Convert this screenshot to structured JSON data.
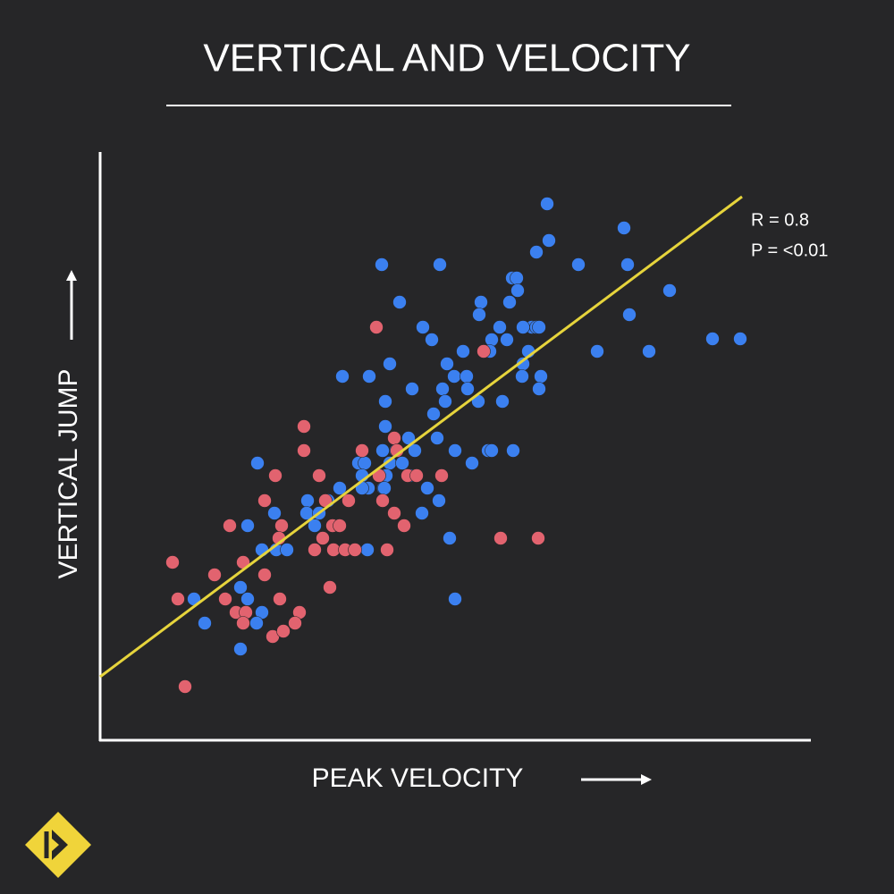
{
  "chart_data": {
    "type": "scatter",
    "title": "VERTICAL AND VELOCITY",
    "x_label": "PEAK VELOCITY",
    "y_label": "VERTICAL JUMP",
    "annotations": [
      "R = 0.8",
      "P = <0.01"
    ],
    "xlim": [
      112,
      905
    ],
    "ylim": [
      172,
      830
    ],
    "trend_line": {
      "color": "#e6d43c",
      "x": [
        112,
        830
      ],
      "y": [
        243,
        780
      ]
    },
    "series": [
      {
        "color": "#3b80f0",
        "x": [
          612,
          614,
          698,
          600,
          427,
          492,
          647,
          702,
          749,
          704,
          573,
          578,
          579,
          538,
          447,
          570,
          536,
          559,
          473,
          550,
          567,
          595,
          600,
          603,
          585,
          483,
          548,
          518,
          591,
          668,
          726,
          797,
          828,
          436,
          500,
          585,
          413,
          383,
          508,
          522,
          584,
          605,
          461,
          495,
          523,
          603,
          431,
          498,
          535,
          562,
          485,
          431,
          457,
          489,
          428,
          443,
          464,
          509,
          546,
          550,
          574,
          528,
          288,
          401,
          408,
          436,
          450,
          405,
          432,
          412,
          380,
          344,
          367,
          478,
          458,
          405,
          429,
          491,
          307,
          277,
          343,
          357,
          472,
          352,
          293,
          309,
          321,
          411,
          503,
          217,
          269,
          277,
          293,
          287,
          229,
          269,
          509,
          430
        ],
        "values": [
          772,
          731,
          745,
          718,
          704,
          704,
          704,
          704,
          675,
          648,
          689,
          689,
          675,
          662,
          662,
          662,
          648,
          634,
          634,
          620,
          620,
          634,
          634,
          634,
          634,
          620,
          607,
          607,
          607,
          607,
          607,
          621,
          621,
          593,
          593,
          593,
          579,
          579,
          579,
          579,
          579,
          579,
          565,
          565,
          565,
          565,
          551,
          551,
          551,
          551,
          537,
          523,
          510,
          510,
          496,
          496,
          496,
          496,
          496,
          496,
          496,
          482,
          482,
          482,
          482,
          482,
          482,
          468,
          468,
          454,
          454,
          440,
          440,
          454,
          468,
          454,
          454,
          440,
          426,
          412,
          426,
          426,
          426,
          412,
          385,
          385,
          385,
          385,
          398,
          330,
          343,
          330,
          315,
          303,
          303,
          274,
          330,
          454
        ]
      },
      {
        "color": "#e2636f",
        "x": [
          421,
          541,
          340,
          340,
          405,
          441,
          444,
          308,
          357,
          424,
          494,
          456,
          466,
          296,
          364,
          390,
          428,
          257,
          315,
          441,
          452,
          372,
          380,
          361,
          560,
          602,
          312,
          352,
          373,
          386,
          397,
          433,
          193,
          240,
          272,
          296,
          369,
          199,
          252,
          313,
          264,
          275,
          335,
          272,
          330,
          305,
          317,
          207
        ],
        "values": [
          634,
          607,
          523,
          496,
          496,
          510,
          496,
          468,
          468,
          468,
          468,
          468,
          468,
          440,
          440,
          440,
          440,
          412,
          412,
          426,
          412,
          412,
          412,
          398,
          398,
          398,
          398,
          385,
          385,
          385,
          385,
          385,
          371,
          357,
          371,
          357,
          343,
          330,
          330,
          330,
          315,
          315,
          315,
          303,
          303,
          288,
          294,
          232
        ]
      }
    ]
  }
}
